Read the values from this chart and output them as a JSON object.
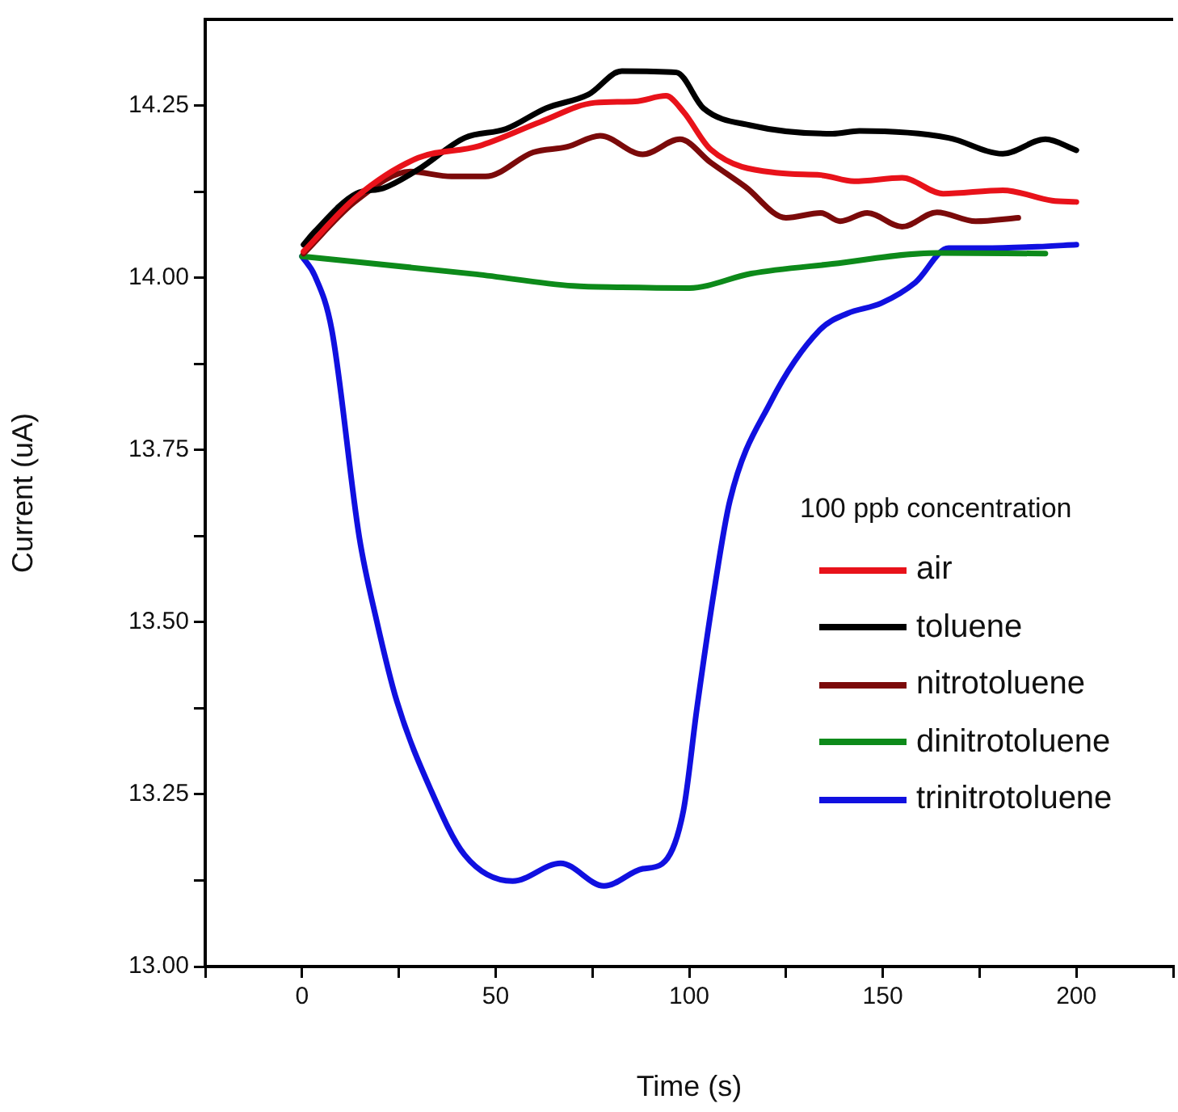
{
  "chart_data": {
    "type": "line",
    "xlabel": "Time (s)",
    "ylabel": "Current (uA)",
    "legend_title": "100 ppb concentration",
    "legend": "right",
    "grid": false,
    "marker": "none",
    "line_style": "solid",
    "xlim": [
      -25,
      225
    ],
    "xticks": [
      {
        "value": -25,
        "label": null
      },
      0,
      {
        "value": 25,
        "label": null
      },
      50,
      {
        "value": 75,
        "label": null
      },
      100,
      {
        "value": 125,
        "label": null
      },
      150,
      {
        "value": 175,
        "label": null
      },
      200,
      {
        "value": 225,
        "label": null
      }
    ],
    "ylim": [
      13,
      14.375
    ],
    "yticks": [
      {
        "value": 13,
        "label": "13.00"
      },
      {
        "value": 13.125,
        "label": null
      },
      {
        "value": 13.25,
        "label": "13.25"
      },
      {
        "value": 13.375,
        "label": null
      },
      {
        "value": 13.5,
        "label": "13.50"
      },
      {
        "value": 13.625,
        "label": null
      },
      {
        "value": 13.75,
        "label": "13.75"
      },
      {
        "value": 13.875,
        "label": null
      },
      {
        "value": 14,
        "label": "14.00"
      },
      {
        "value": 14.125,
        "label": null
      },
      {
        "value": 14.25,
        "label": "14.25"
      }
    ],
    "series": [
      {
        "name": "air",
        "color": "#e8121a",
        "x": [
          0.4,
          14,
          30,
          45.6,
          61.5,
          75.6,
          86,
          94,
          98.5,
          105.6,
          123,
          134,
          142.6,
          155,
          165.6,
          181,
          193.7,
          200
        ],
        "values": [
          14.038,
          14.117,
          14.174,
          14.191,
          14.226,
          14.254,
          14.256,
          14.264,
          14.241,
          14.186,
          14.152,
          14.149,
          14.14,
          14.145,
          14.122,
          14.127,
          14.112,
          14.11
        ]
      },
      {
        "name": "toluene",
        "color": "#000000",
        "x": [
          0.4,
          3.3,
          14,
          21,
          30,
          42,
          52.7,
          63,
          74,
          82.6,
          96.7,
          103.7,
          116,
          137,
          144,
          167,
          181,
          192,
          200
        ],
        "values": [
          14.048,
          14.067,
          14.122,
          14.13,
          14.157,
          14.203,
          14.216,
          14.246,
          14.266,
          14.3,
          14.298,
          14.246,
          14.221,
          14.209,
          14.213,
          14.203,
          14.18,
          14.201,
          14.185
        ]
      },
      {
        "name": "nitrotoluene",
        "color": "#7b0a0a",
        "x": [
          0.4,
          14,
          28,
          38.6,
          47.4,
          59.7,
          68.5,
          77,
          88,
          97.6,
          105.6,
          114.5,
          125,
          134,
          139,
          146,
          155,
          164,
          174,
          185
        ],
        "values": [
          14.035,
          14.112,
          14.154,
          14.147,
          14.147,
          14.182,
          14.19,
          14.206,
          14.179,
          14.201,
          14.167,
          14.132,
          14.087,
          14.094,
          14.082,
          14.094,
          14.074,
          14.095,
          14.082,
          14.087
        ]
      },
      {
        "name": "dinitrotoluene",
        "color": "#0d8a1a",
        "x": [
          0,
          45,
          70,
          82.6,
          100,
          116,
          137,
          164,
          192
        ],
        "values": [
          14.031,
          14.005,
          13.988,
          13.986,
          13.985,
          14.006,
          14.02,
          14.036,
          14.035
        ]
      },
      {
        "name": "trinitrotoluene",
        "color": "#1010e0",
        "x": [
          0,
          3.3,
          7.7,
          14.8,
          19.2,
          24.5,
          33.3,
          42,
          54.4,
          66.8,
          78,
          88,
          93,
          98.5,
          102,
          106.4,
          110.5,
          121,
          133.7,
          140.8,
          149.6,
          158.4,
          167,
          176,
          190,
          200
        ],
        "values": [
          14.031,
          14.003,
          13.924,
          13.623,
          13.504,
          13.385,
          13.256,
          13.162,
          13.124,
          13.15,
          13.117,
          13.142,
          13.149,
          13.226,
          13.375,
          13.544,
          13.676,
          13.819,
          13.924,
          13.948,
          13.963,
          13.993,
          14.043,
          14.043,
          14.045,
          14.048
        ]
      }
    ]
  }
}
